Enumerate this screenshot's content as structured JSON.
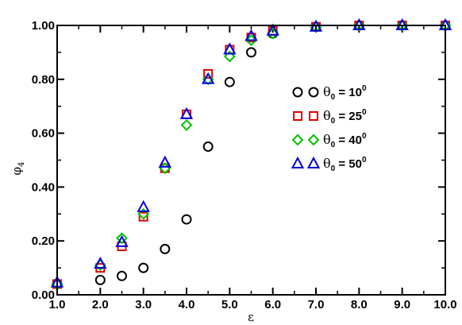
{
  "chart_data": {
    "type": "scatter",
    "title": "",
    "xlabel": "ε",
    "ylabel": "φ",
    "ylabel_sub": "4",
    "xlim": [
      1.0,
      10.0
    ],
    "ylim": [
      0.0,
      1.0
    ],
    "x_ticks": [
      1,
      2,
      3,
      4,
      5,
      6,
      7,
      8,
      9,
      10
    ],
    "x_tick_labels": [
      "1.0",
      "2.0",
      "3.0",
      "4.0",
      "5.0",
      "6.0",
      "7.0",
      "8.0",
      "9.0",
      "10.0"
    ],
    "y_ticks": [
      0,
      0.2,
      0.4,
      0.6,
      0.8,
      1.0
    ],
    "y_tick_labels": [
      "0.00",
      "0.20",
      "0.40",
      "0.60",
      "0.80",
      "1.00"
    ],
    "grid": false,
    "legend_position": "center-right",
    "series": [
      {
        "name_symbol": "θ",
        "name_sub": "0",
        "name_eq": " = 10",
        "name_sup": "0",
        "marker": "circle",
        "color": "#000000",
        "x": [
          1.0,
          2.0,
          2.5,
          3.0,
          3.5,
          4.0,
          4.5,
          5.0,
          5.5,
          6.0,
          7.0,
          8.0,
          9.0,
          10.0
        ],
        "y": [
          0.04,
          0.055,
          0.07,
          0.1,
          0.17,
          0.28,
          0.55,
          0.79,
          0.9,
          0.97,
          0.995,
          1.0,
          1.0,
          1.0
        ]
      },
      {
        "name_symbol": "θ",
        "name_sub": "0",
        "name_eq": " = 25",
        "name_sup": "0",
        "marker": "square",
        "color": "#e00000",
        "x": [
          1.0,
          2.0,
          2.5,
          3.0,
          3.5,
          4.0,
          4.5,
          5.0,
          5.5,
          6.0,
          7.0,
          8.0,
          9.0,
          10.0
        ],
        "y": [
          0.04,
          0.1,
          0.18,
          0.29,
          0.47,
          0.67,
          0.82,
          0.91,
          0.955,
          0.98,
          0.995,
          1.0,
          1.0,
          1.0
        ]
      },
      {
        "name_symbol": "θ",
        "name_sub": "0",
        "name_eq": " = 40",
        "name_sup": "0",
        "marker": "diamond",
        "color": "#00c000",
        "x": [
          1.0,
          2.0,
          2.5,
          3.0,
          3.5,
          4.0,
          4.5,
          5.0,
          5.5,
          6.0,
          7.0,
          8.0,
          9.0,
          10.0
        ],
        "y": [
          0.04,
          0.11,
          0.21,
          0.3,
          0.47,
          0.63,
          0.8,
          0.885,
          0.945,
          0.97,
          0.995,
          1.0,
          1.0,
          1.0
        ]
      },
      {
        "name_symbol": "θ",
        "name_sub": "0",
        "name_eq": " = 50",
        "name_sup": "0",
        "marker": "triangle",
        "color": "#0000e0",
        "x": [
          1.0,
          2.0,
          2.5,
          3.0,
          3.5,
          4.0,
          4.5,
          5.0,
          5.5,
          6.0,
          7.0,
          8.0,
          9.0,
          10.0
        ],
        "y": [
          0.045,
          0.115,
          0.195,
          0.325,
          0.49,
          0.67,
          0.8,
          0.91,
          0.96,
          0.98,
          0.995,
          1.0,
          1.0,
          1.0
        ]
      }
    ]
  }
}
